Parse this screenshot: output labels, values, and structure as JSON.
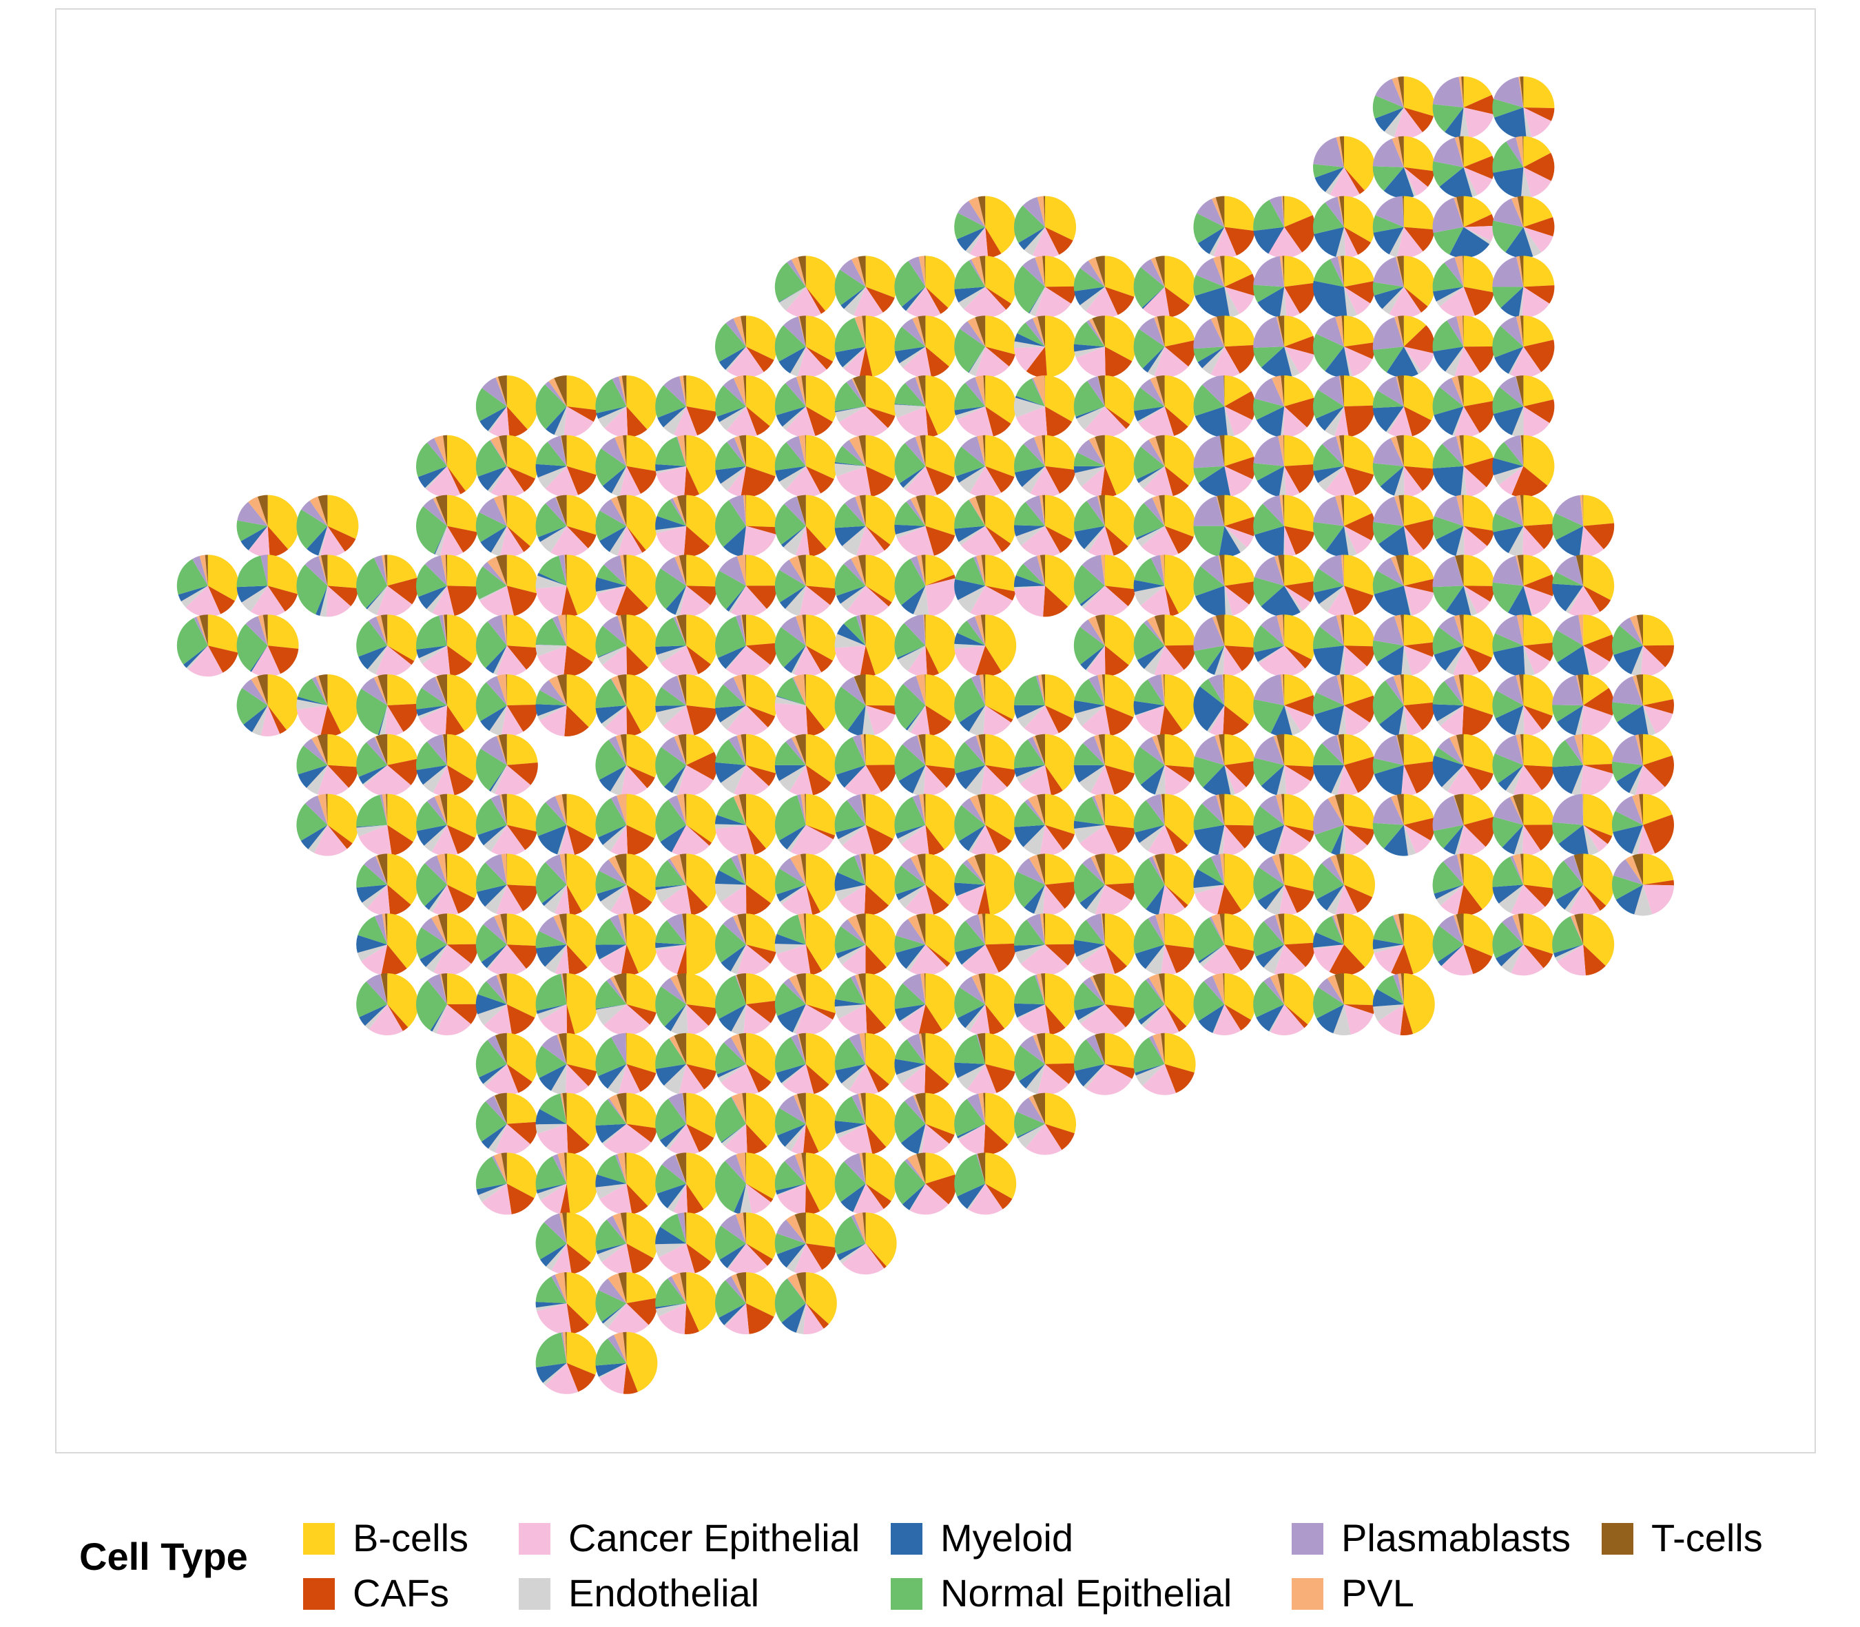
{
  "chart_data": {
    "type": "scatter",
    "subtype": "spatial-pie",
    "legend": {
      "title": "Cell Type",
      "placement": "bottom",
      "entries": [
        {
          "name": "B-cells",
          "color": "#FFD21F"
        },
        {
          "name": "CAFs",
          "color": "#D34A0B"
        },
        {
          "name": "Cancer Epithelial",
          "color": "#F6BEDC"
        },
        {
          "name": "Endothelial",
          "color": "#D3D3D3"
        },
        {
          "name": "Myeloid",
          "color": "#2C6AAC"
        },
        {
          "name": "Normal Epithelial",
          "color": "#6CBF6B"
        },
        {
          "name": "Plasmablasts",
          "color": "#AF9BCB"
        },
        {
          "name": "PVL",
          "color": "#F8B078"
        },
        {
          "name": "T-cells",
          "color": "#93611C"
        }
      ]
    },
    "grid": false,
    "rows": [
      {
        "row": 0,
        "cols": [
          21,
          22,
          23
        ]
      },
      {
        "row": 1,
        "cols": [
          20,
          21,
          22,
          23
        ]
      },
      {
        "row": 2,
        "cols": [
          14,
          15,
          18,
          19,
          20,
          21,
          22,
          23
        ]
      },
      {
        "row": 3,
        "cols": [
          11,
          12,
          13,
          14,
          15,
          16,
          17,
          18,
          19,
          20,
          21,
          22,
          23
        ]
      },
      {
        "row": 4,
        "cols": [
          10,
          11,
          12,
          13,
          14,
          15,
          16,
          17,
          18,
          19,
          20,
          21,
          22,
          23
        ]
      },
      {
        "row": 5,
        "cols": [
          6,
          7,
          8,
          9,
          10,
          11,
          12,
          13,
          14,
          15,
          16,
          17,
          18,
          19,
          20,
          21,
          22,
          23
        ]
      },
      {
        "row": 6,
        "cols": [
          5,
          6,
          7,
          8,
          9,
          10,
          11,
          12,
          13,
          14,
          15,
          16,
          17,
          18,
          19,
          20,
          21,
          22,
          23
        ]
      },
      {
        "row": 7,
        "cols": [
          2,
          3,
          5,
          6,
          7,
          8,
          9,
          10,
          11,
          12,
          13,
          14,
          15,
          16,
          17,
          18,
          19,
          20,
          21,
          22,
          23,
          24
        ]
      },
      {
        "row": 8,
        "cols": [
          1,
          2,
          3,
          4,
          5,
          6,
          7,
          8,
          9,
          10,
          11,
          12,
          13,
          14,
          15,
          16,
          17,
          18,
          19,
          20,
          21,
          22,
          23,
          24
        ]
      },
      {
        "row": 9,
        "cols": [
          1,
          2,
          4,
          5,
          6,
          7,
          8,
          9,
          10,
          11,
          12,
          13,
          14,
          16,
          17,
          18,
          19,
          20,
          21,
          22,
          23,
          24,
          25
        ]
      },
      {
        "row": 10,
        "cols": [
          2,
          3,
          4,
          5,
          6,
          7,
          8,
          9,
          10,
          11,
          12,
          13,
          14,
          15,
          16,
          17,
          18,
          19,
          20,
          21,
          22,
          23,
          24,
          25
        ]
      },
      {
        "row": 11,
        "cols": [
          3,
          4,
          5,
          6,
          8,
          9,
          10,
          11,
          12,
          13,
          14,
          15,
          16,
          17,
          18,
          19,
          20,
          21,
          22,
          23,
          24,
          25
        ]
      },
      {
        "row": 12,
        "cols": [
          3,
          4,
          5,
          6,
          7,
          8,
          9,
          10,
          11,
          12,
          13,
          14,
          15,
          16,
          17,
          18,
          19,
          20,
          21,
          22,
          23,
          24,
          25
        ]
      },
      {
        "row": 13,
        "cols": [
          4,
          5,
          6,
          7,
          8,
          9,
          10,
          11,
          12,
          13,
          14,
          15,
          16,
          17,
          18,
          19,
          20,
          22,
          23,
          24,
          25
        ]
      },
      {
        "row": 14,
        "cols": [
          4,
          5,
          6,
          7,
          8,
          9,
          10,
          11,
          12,
          13,
          14,
          15,
          16,
          17,
          18,
          19,
          20,
          21,
          22,
          23,
          24
        ]
      },
      {
        "row": 15,
        "cols": [
          4,
          5,
          6,
          7,
          8,
          9,
          10,
          11,
          12,
          13,
          14,
          15,
          16,
          17,
          18,
          19,
          20,
          21
        ]
      },
      {
        "row": 16,
        "cols": [
          6,
          7,
          8,
          9,
          10,
          11,
          12,
          13,
          14,
          15,
          16,
          17
        ]
      },
      {
        "row": 17,
        "cols": [
          6,
          7,
          8,
          9,
          10,
          11,
          12,
          13,
          14,
          15
        ]
      },
      {
        "row": 18,
        "cols": [
          6,
          7,
          8,
          9,
          10,
          11,
          12,
          13,
          14
        ]
      },
      {
        "row": 19,
        "cols": [
          7,
          8,
          9,
          10,
          11,
          12
        ]
      },
      {
        "row": 20,
        "cols": [
          7,
          8,
          9,
          10,
          11
        ]
      },
      {
        "row": 21,
        "cols": [
          7,
          8
        ]
      }
    ]
  }
}
